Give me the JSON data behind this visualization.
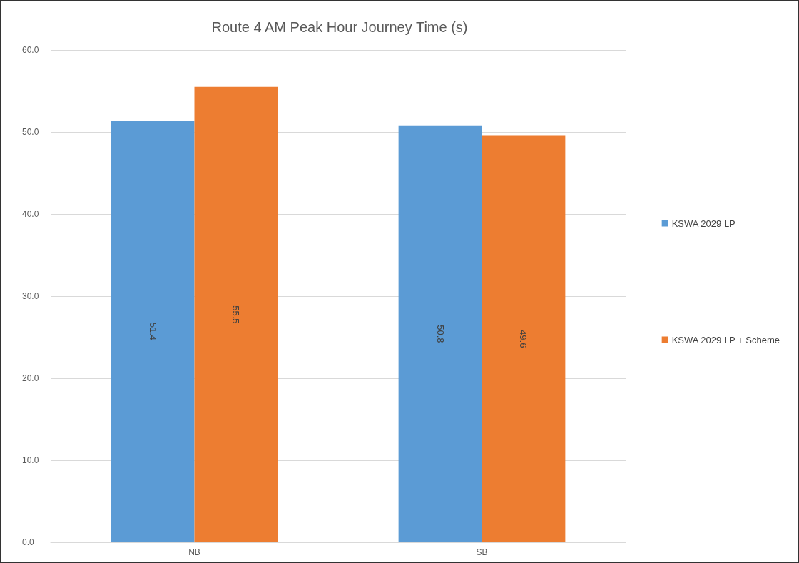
{
  "chart_data": {
    "type": "bar",
    "title": "Route 4 AM Peak Hour Journey Time (s)",
    "categories": [
      "NB",
      "SB"
    ],
    "series": [
      {
        "name": "KSWA 2029 LP",
        "color": "#5b9bd5",
        "values": [
          51.4,
          50.8
        ]
      },
      {
        "name": "KSWA 2029 LP + Scheme",
        "color": "#ed7d31",
        "values": [
          55.5,
          49.6
        ]
      }
    ],
    "ylim": [
      0,
      60
    ],
    "yticks": [
      {
        "value": 0,
        "label": "0.0"
      },
      {
        "value": 10,
        "label": "10.0"
      },
      {
        "value": 20,
        "label": "20.0"
      },
      {
        "value": 30,
        "label": "30.0"
      },
      {
        "value": 40,
        "label": "40.0"
      },
      {
        "value": 50,
        "label": "50.0"
      },
      {
        "value": 60,
        "label": "60.0"
      }
    ],
    "grid": "y",
    "legend": "right",
    "data_labels": true
  }
}
